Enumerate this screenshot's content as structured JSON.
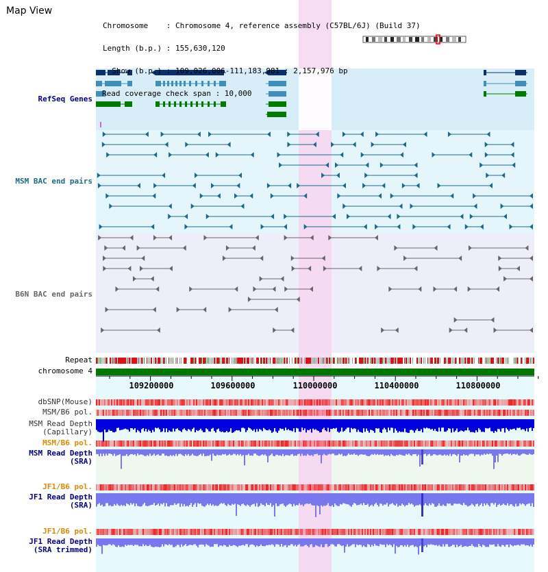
{
  "title": "Map View",
  "header": {
    "chromosome_line": "Chromosome    : Chromosome 4, reference assembly (C57BL/6J) (Build 37)",
    "length_line": "Length (b.p.) : 155,630,120",
    "show_line": "  Show (b.p.) : 109,026,006-111,183,981 : 2,157,976 bp",
    "coverage_line": "Read coverage check span : 10,000"
  },
  "colors": {
    "highlight": "#f7d6f0",
    "refseq_bg": "#d7eef8",
    "msm_bg": "#e4f6fb",
    "b6n_bg": "#eeeef8",
    "lower_bg": "#e8f9fb",
    "refseq_dark": "#0d2f6b",
    "refseq_mid": "#3f8fba",
    "refseq_green": "#007a00",
    "msm_pair": "#1a6a8c",
    "b6n_pair": "#666666",
    "repeat_red": "#dd1111",
    "chrom_green": "#007700",
    "snp_red": "#ee2222",
    "depth_blue": "#0000dd",
    "depth_light": "#7878ee",
    "label_blue": "#00008b",
    "label_orange": "#e08a00",
    "label_teal": "#1a6a8c",
    "label_gray": "#666666"
  },
  "tracks": {
    "refseq": "RefSeq Genes",
    "msm_bac": "MSM BAC end pairs",
    "b6n_bac": "B6N BAC end pairs",
    "repeat": "Repeat",
    "chromosome": "chromosome 4",
    "dbsnp": "dbSNP(Mouse)",
    "msm_b6_pol_1": "MSM/B6 pol.",
    "msm_depth_cap": "MSM Read Depth\n(Capillary)",
    "msm_b6_pol_2": "MSM/B6 pol.",
    "msm_depth_sra": "MSM Read Depth\n(SRA)",
    "jf1_b6_pol_1": "JF1/B6 pol.",
    "jf1_depth_sra": "JF1 Read Depth\n(SRA)",
    "jf1_b6_pol_2": "JF1/B6 pol.",
    "jf1_depth_trim": "JF1 Read Depth\n(SRA trimmed)"
  },
  "axis": {
    "tick_labels": [
      "109200000",
      "109600000",
      "110000000",
      "110400000",
      "110800000"
    ]
  }
}
